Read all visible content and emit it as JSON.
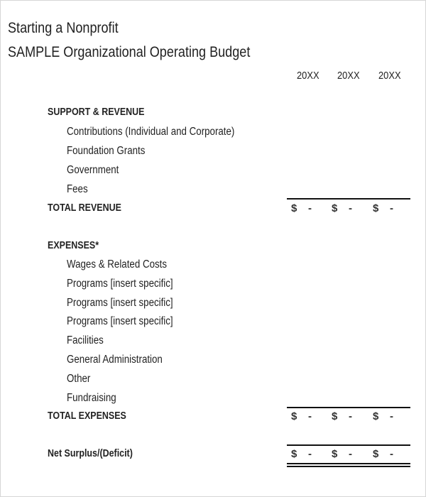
{
  "title": "Starting a Nonprofit",
  "subtitle": "SAMPLE Organizational Operating Budget",
  "columns": [
    "20XX",
    "20XX",
    "20XX"
  ],
  "support_revenue": {
    "heading": "SUPPORT & REVENUE",
    "items": [
      "Contributions (Individual and Corporate)",
      "Foundation Grants",
      "Government",
      "Fees"
    ],
    "total_label": "TOTAL REVENUE",
    "totals": [
      [
        "$",
        "-"
      ],
      [
        "$",
        "-"
      ],
      [
        "$",
        "-"
      ]
    ]
  },
  "expenses": {
    "heading": "EXPENSES*",
    "items": [
      "Wages & Related Costs",
      "Programs [insert specific]",
      "Programs [insert specific]",
      "Programs [insert specific]",
      "Facilities",
      "General Administration",
      "Other",
      "Fundraising"
    ],
    "total_label": "TOTAL EXPENSES",
    "totals": [
      [
        "$",
        "-"
      ],
      [
        "$",
        "-"
      ],
      [
        "$",
        "-"
      ]
    ]
  },
  "net": {
    "label": "Net Surplus/(Deficit)",
    "totals": [
      [
        "$",
        "-"
      ],
      [
        "$",
        "-"
      ],
      [
        "$",
        "-"
      ]
    ]
  }
}
